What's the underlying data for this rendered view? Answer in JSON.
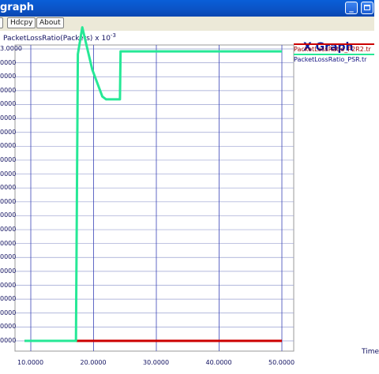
{
  "window": {
    "title": "graph",
    "minimize_glyph": "_"
  },
  "toolbar": {
    "buttons": [
      "Hdcpy",
      "About"
    ]
  },
  "graph": {
    "app_title": "X Graph",
    "ylabel": "PacketLossRatio(Packets) x 10",
    "ylabel_exp": "-3",
    "xlabel": "Time",
    "ytick_labels": [
      "3.0000",
      "0000",
      "0000",
      "0000",
      "0000",
      "0000",
      "0000",
      "0000",
      "0000",
      "0000",
      "0000",
      "0000",
      "0000",
      "0000",
      "0000",
      "0000",
      "0000",
      "0000",
      "0000",
      "0000",
      "0000",
      "0000"
    ],
    "xtick_labels": [
      "10.0000",
      "20.0000",
      "30.0000",
      "40.0000",
      "50.0000"
    ]
  },
  "chart_data": {
    "type": "line",
    "xlabel": "Time",
    "ylabel": "PacketLossRatio(Packets) x 10^-3",
    "xlim": [
      8,
      52
    ],
    "grid": true,
    "legend_position": "top-right",
    "series": [
      {
        "name": "PacketLossRatio_P2R2.tr",
        "color": "#cc0000",
        "x": [
          9.0,
          50.0
        ],
        "y": [
          0.0,
          0.0
        ]
      },
      {
        "name": "PacketLossRatio_PSR.tr",
        "color": "#26e896",
        "x": [
          9.0,
          17.2,
          17.5,
          18.2,
          19.8,
          21.4,
          22.0,
          23.5,
          24.2,
          24.3,
          50.0
        ],
        "y": [
          0.0,
          0.0,
          2.03,
          2.22,
          1.92,
          1.73,
          1.71,
          1.71,
          1.71,
          2.05,
          2.05
        ]
      }
    ]
  }
}
